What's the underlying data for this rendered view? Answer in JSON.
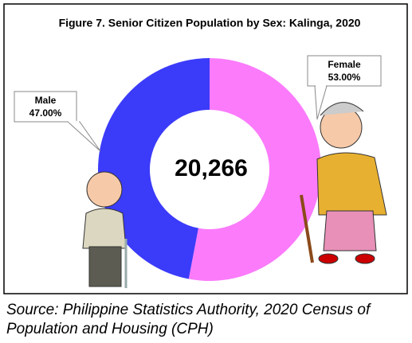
{
  "chart_data": {
    "type": "donut",
    "title": "Figure 7. Senior Citizen Population by Sex: Kalinga, 2020",
    "categories": [
      "Female",
      "Male"
    ],
    "values": [
      53.0,
      47.0
    ],
    "value_labels": [
      "53.00%",
      "47.00%"
    ],
    "colors": [
      "#fb7bfb",
      "#3b3bfa"
    ],
    "center_label": "20,266",
    "source": "Source: Philippine Statistics Authority, 2020 Census of Population and Housing (CPH)"
  }
}
